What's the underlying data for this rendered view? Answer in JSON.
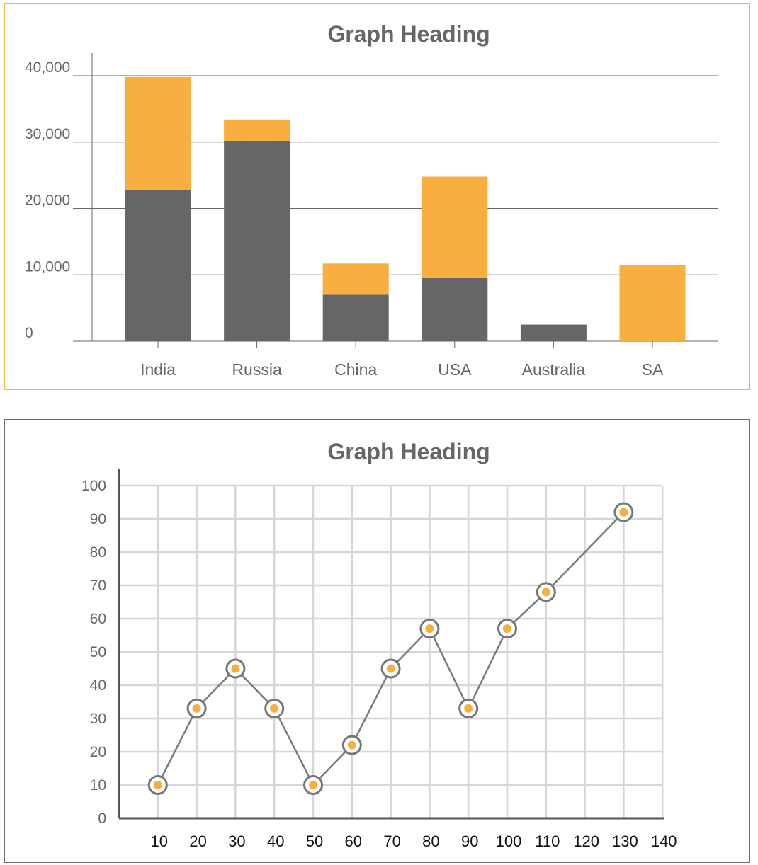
{
  "colors": {
    "dark": "#666666",
    "orange": "#f9ae40",
    "panel_border": "#f2b63f"
  },
  "chart_data": [
    {
      "type": "bar",
      "stacked": true,
      "title": "Graph Heading",
      "categories": [
        "India",
        "Russia",
        "China",
        "USA",
        "Australia",
        "SA"
      ],
      "series": [
        {
          "values": [
            22800,
            30200,
            7000,
            9500,
            2500,
            0
          ],
          "color": "#666666"
        },
        {
          "values": [
            17000,
            3200,
            4700,
            15300,
            0,
            11500
          ],
          "color": "#f9ae40"
        }
      ],
      "yticks": [
        0,
        10000,
        20000,
        30000,
        40000
      ],
      "ytick_labels": [
        "0",
        "10,000",
        "20,000",
        "30,000",
        "40,000"
      ],
      "ylim": [
        0,
        40000
      ],
      "grid": "horizontal"
    },
    {
      "type": "line",
      "title": "Graph Heading",
      "x": [
        10,
        20,
        30,
        40,
        50,
        60,
        70,
        80,
        90,
        100,
        110,
        130
      ],
      "y": [
        10,
        33,
        45,
        33,
        10,
        22,
        45,
        57,
        33,
        57,
        68,
        92
      ],
      "xticks": [
        10,
        20,
        30,
        40,
        50,
        60,
        70,
        80,
        90,
        100,
        110,
        120,
        130,
        140
      ],
      "yticks": [
        0,
        10,
        20,
        30,
        40,
        50,
        60,
        70,
        80,
        90,
        100
      ],
      "xlim": [
        0,
        140
      ],
      "ylim": [
        0,
        100
      ],
      "grid": true,
      "marker_color": "#f9ae40",
      "line_color": "#7a7a7a"
    }
  ]
}
